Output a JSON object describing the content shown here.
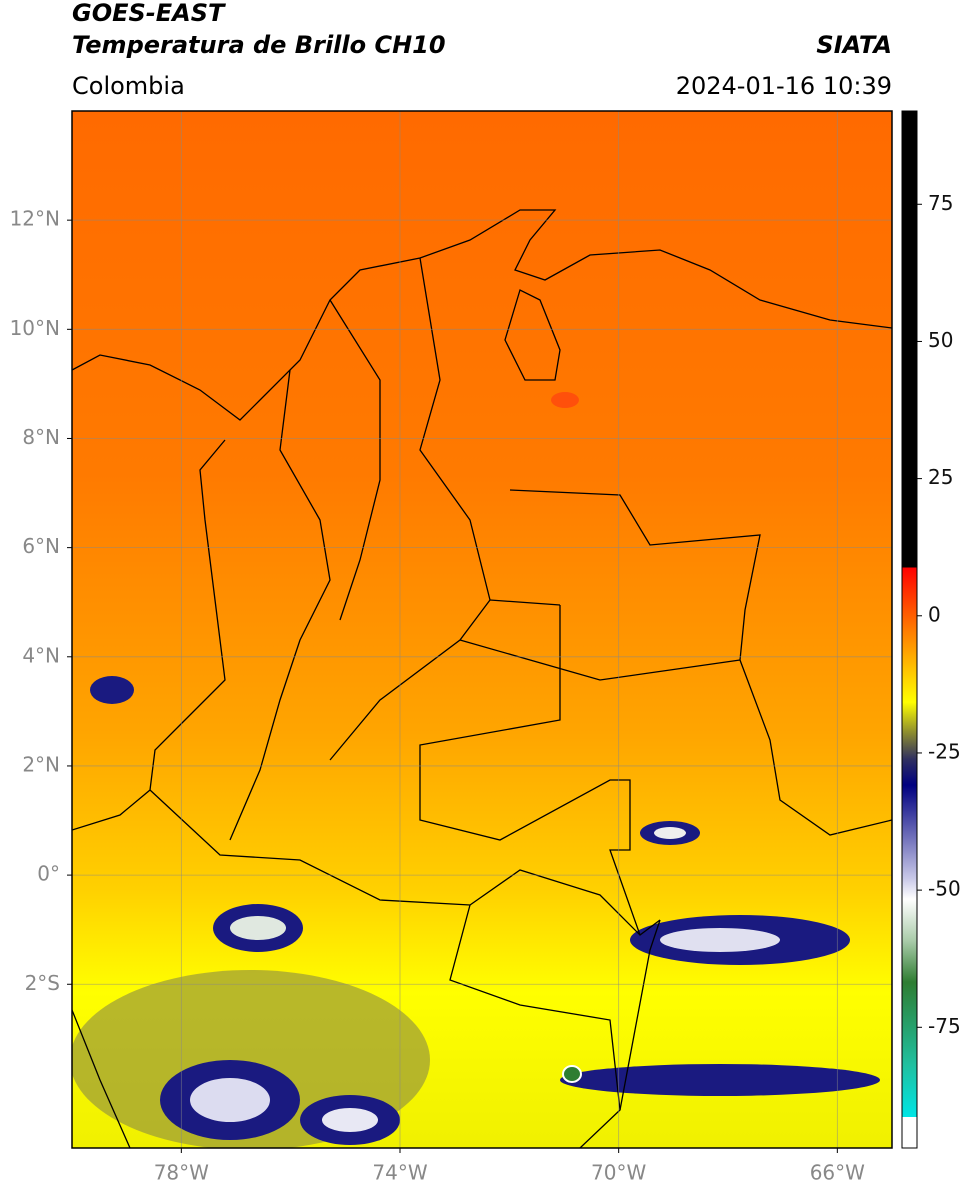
{
  "header": {
    "title": "GOES-EAST",
    "subtitle": "Temperatura de Brillo CH10",
    "region": "Colombia",
    "source": "SIATA",
    "datetime": "2024-01-16 10:39"
  },
  "map": {
    "lon_range": [
      -80,
      -65
    ],
    "lat_range": [
      -5,
      14
    ],
    "lon_ticks": [
      {
        "value": -78,
        "label": "78°W"
      },
      {
        "value": -74,
        "label": "74°W"
      },
      {
        "value": -70,
        "label": "70°W"
      },
      {
        "value": -66,
        "label": "66°W"
      }
    ],
    "lat_ticks": [
      {
        "value": 12,
        "label": "12°N"
      },
      {
        "value": 10,
        "label": "10°N"
      },
      {
        "value": 8,
        "label": "8°N"
      },
      {
        "value": 6,
        "label": "6°N"
      },
      {
        "value": 4,
        "label": "4°N"
      },
      {
        "value": 2,
        "label": "2°N"
      },
      {
        "value": 0,
        "label": "0°"
      },
      {
        "value": -2,
        "label": "2°S"
      }
    ],
    "grid": true
  },
  "colorbar": {
    "lim": [
      -97,
      92
    ],
    "ticks": [
      75,
      50,
      25,
      0,
      -25,
      -50,
      -75
    ]
  }
}
